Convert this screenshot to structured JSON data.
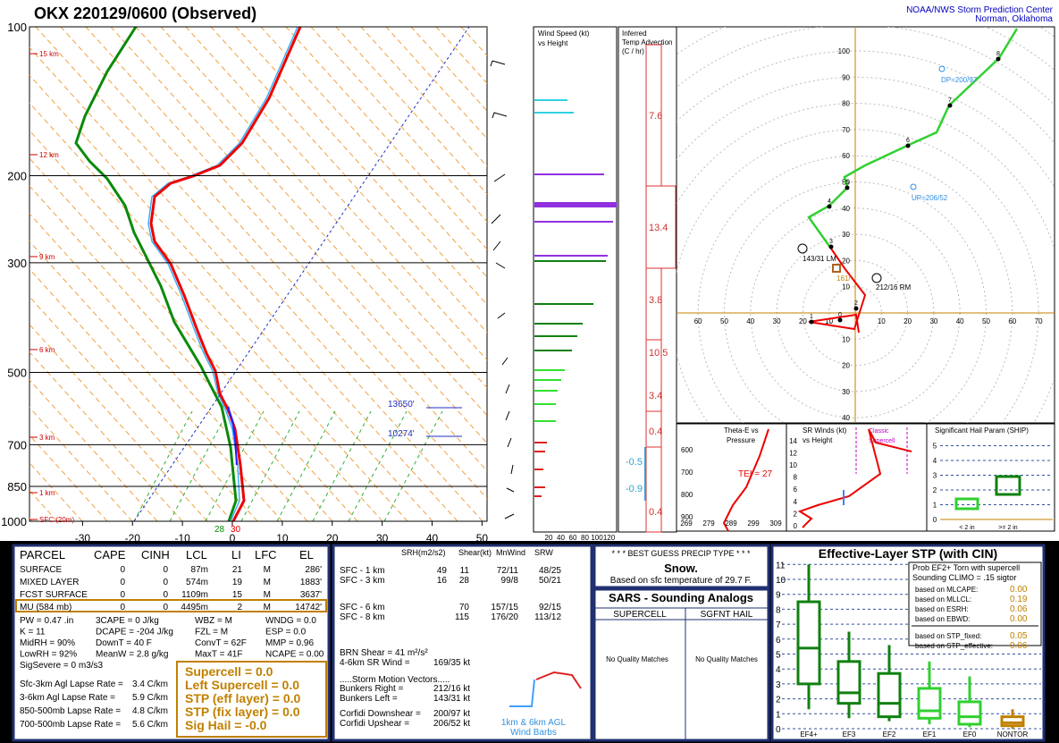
{
  "header": {
    "title": "OKX   220129/0600  (Observed)",
    "org": [
      "NOAA/NWS Storm Prediction Center",
      "Norman, Oklahoma"
    ]
  },
  "skewt": {
    "pressures": [
      100,
      200,
      300,
      500,
      700,
      850,
      1000
    ],
    "heights": [
      "15 km",
      "12 km",
      "9 km",
      "6 km",
      "3 km",
      "1 km",
      "SFC (20m)"
    ],
    "temps": [
      -30,
      -20,
      -10,
      0,
      10,
      20,
      30,
      40,
      50
    ],
    "levels": [
      "13650'",
      "10274'"
    ],
    "sfc": [
      "28",
      "30"
    ]
  },
  "wind_panel": {
    "title": [
      "Wind Speed (kt)",
      "vs Height"
    ],
    "ticks": [
      20,
      40,
      60,
      80,
      100,
      120
    ]
  },
  "advection": {
    "title": [
      "Inferred",
      "Temp Advection",
      "(C / hr)"
    ],
    "values": [
      7.6,
      13.4,
      3.8,
      10.5,
      3.4,
      0.4,
      -0.5,
      -0.9,
      0.4
    ]
  },
  "hodograph": {
    "up": [
      10,
      20,
      30,
      40,
      50,
      60,
      70,
      80,
      90,
      100
    ],
    "left": [
      60,
      50,
      40,
      30,
      20,
      10
    ],
    "right": [
      10,
      20,
      30,
      40,
      50,
      60,
      70
    ],
    "down": [
      10,
      20,
      30,
      40
    ],
    "km": [
      0,
      1,
      2,
      3,
      4,
      5,
      6,
      7,
      8
    ],
    "notes": [
      "DP=200/97",
      "UP=206/52",
      "143/31 LM",
      "212/16 RM",
      "161/"
    ]
  },
  "theta_e": {
    "title": [
      "Theta-E vs",
      "Pressure"
    ],
    "tei": "TEI = 27",
    "yticks": [
      600,
      700,
      800,
      900
    ],
    "xticks": [
      269,
      279,
      289,
      299,
      309
    ]
  },
  "sr_winds": {
    "title": [
      "SR Winds (kt)",
      "vs Height"
    ],
    "ticks": [
      0,
      2,
      4,
      6,
      8,
      10,
      12,
      14
    ],
    "note": [
      "Classic",
      "Supercell"
    ]
  },
  "ship": {
    "title": "Significant Hail Param (SHIP)",
    "ticks": [
      0,
      1,
      2,
      3,
      4,
      5
    ],
    "cats": [
      "< 2 in",
      ">= 2 in"
    ]
  },
  "parcel": {
    "header": [
      "PARCEL",
      "CAPE",
      "CINH",
      "LCL",
      "LI",
      "LFC",
      "EL"
    ],
    "rows": [
      [
        "SURFACE",
        "0",
        "0",
        "87m",
        "21",
        "M",
        "286'"
      ],
      [
        "MIXED LAYER",
        "0",
        "0",
        "574m",
        "19",
        "M",
        "1883'"
      ],
      [
        "FCST SURFACE",
        "0",
        "0",
        "1109m",
        "15",
        "M",
        "3637'"
      ],
      [
        "MU     (584 mb)",
        "0",
        "0",
        "4495m",
        "2",
        "M",
        "14742'"
      ]
    ],
    "params": [
      [
        "PW = 0.47 .in",
        "3CAPE = 0 J/kg",
        "WBZ = M",
        "WNDG = 0.0"
      ],
      [
        "K = 11",
        "DCAPE = -204 J/kg",
        "FZL = M",
        "ESP = 0.0"
      ],
      [
        "MidRH = 90%",
        "DownT = 40 F",
        "ConvT = 62F",
        "MMP = 0.96"
      ],
      [
        "LowRH = 92%",
        "MeanW = 2.8 g/kg",
        "MaxT = 41F",
        "NCAPE = 0.00"
      ],
      [
        "SigSevere = 0 m3/s3"
      ]
    ],
    "lapse": [
      [
        "Sfc-3km Agl Lapse Rate =",
        "3.4 C/km"
      ],
      [
        "3-6km Agl Lapse Rate =",
        "5.9 C/km"
      ],
      [
        "850-500mb Lapse Rate =",
        "4.8 C/km"
      ],
      [
        "700-500mb Lapse Rate =",
        "5.6 C/km"
      ]
    ],
    "composite": [
      "Supercell = 0.0",
      "Left Supercell = 0.0",
      "STP (eff layer) = 0.0",
      "STP (fix layer) = 0.0",
      "Sig Hail = -0.0"
    ]
  },
  "kinematics": {
    "header": [
      "SRH(m2/s2)",
      "Shear(kt)",
      "MnWind",
      "SRW"
    ],
    "rows": [
      [
        "SFC - 1 km",
        "49",
        "11",
        "72/11",
        "48/25"
      ],
      [
        "SFC - 3 km",
        "16",
        "28",
        "99/8",
        "50/21"
      ]
    ],
    "deep": [
      [
        "SFC - 6 km",
        "70",
        "157/15",
        "92/15"
      ],
      [
        "SFC - 8 km",
        "115",
        "176/20",
        "113/12"
      ]
    ],
    "brn": "BRN Shear =  41 m²/s²",
    "sr46": [
      "4-6km SR Wind =",
      "169/35 kt"
    ],
    "vectors_title": ".....Storm Motion Vectors.....",
    "vectors": [
      [
        "Bunkers Right =",
        "212/16 kt"
      ],
      [
        "Bunkers Left =",
        "143/31 kt"
      ],
      [
        "Corfidi Downshear =",
        "200/97 kt"
      ],
      [
        "Corfidi Upshear =",
        "206/52 kt"
      ]
    ],
    "barbs": [
      "1km & 6km AGL",
      "Wind Barbs"
    ]
  },
  "precip": [
    "* * * BEST GUESS PRECIP TYPE * * *",
    "Snow.",
    "Based on sfc temperature of 29.7 F."
  ],
  "sars": {
    "title": "SARS - Sounding Analogs",
    "cols": [
      "SUPERCELL",
      "SGFNT HAIL"
    ],
    "results": [
      "No Quality Matches",
      "No Quality Matches"
    ]
  },
  "stp": {
    "title": "Effective-Layer STP (with CIN)",
    "ticks": [
      0,
      1,
      2,
      3,
      4,
      5,
      6,
      7,
      8,
      9,
      10,
      11
    ],
    "cats": [
      "EF4+",
      "EF3",
      "EF2",
      "EF1",
      "EF0",
      "NONTOR"
    ],
    "box_title": [
      "Prob EF2+ Torn with supercell",
      "Sounding CLIMO = .15 sigtor"
    ],
    "probs": [
      [
        "based on MLCAPE:",
        "0.00"
      ],
      [
        "based on MLLCL:",
        "0.19"
      ],
      [
        "based on ESRH:",
        "0.06"
      ],
      [
        "based on EBWD:",
        "0.00"
      ],
      [
        "based on STP_fixed:",
        "0.05"
      ],
      [
        "based on STP_effective:",
        "0.06"
      ]
    ]
  }
}
